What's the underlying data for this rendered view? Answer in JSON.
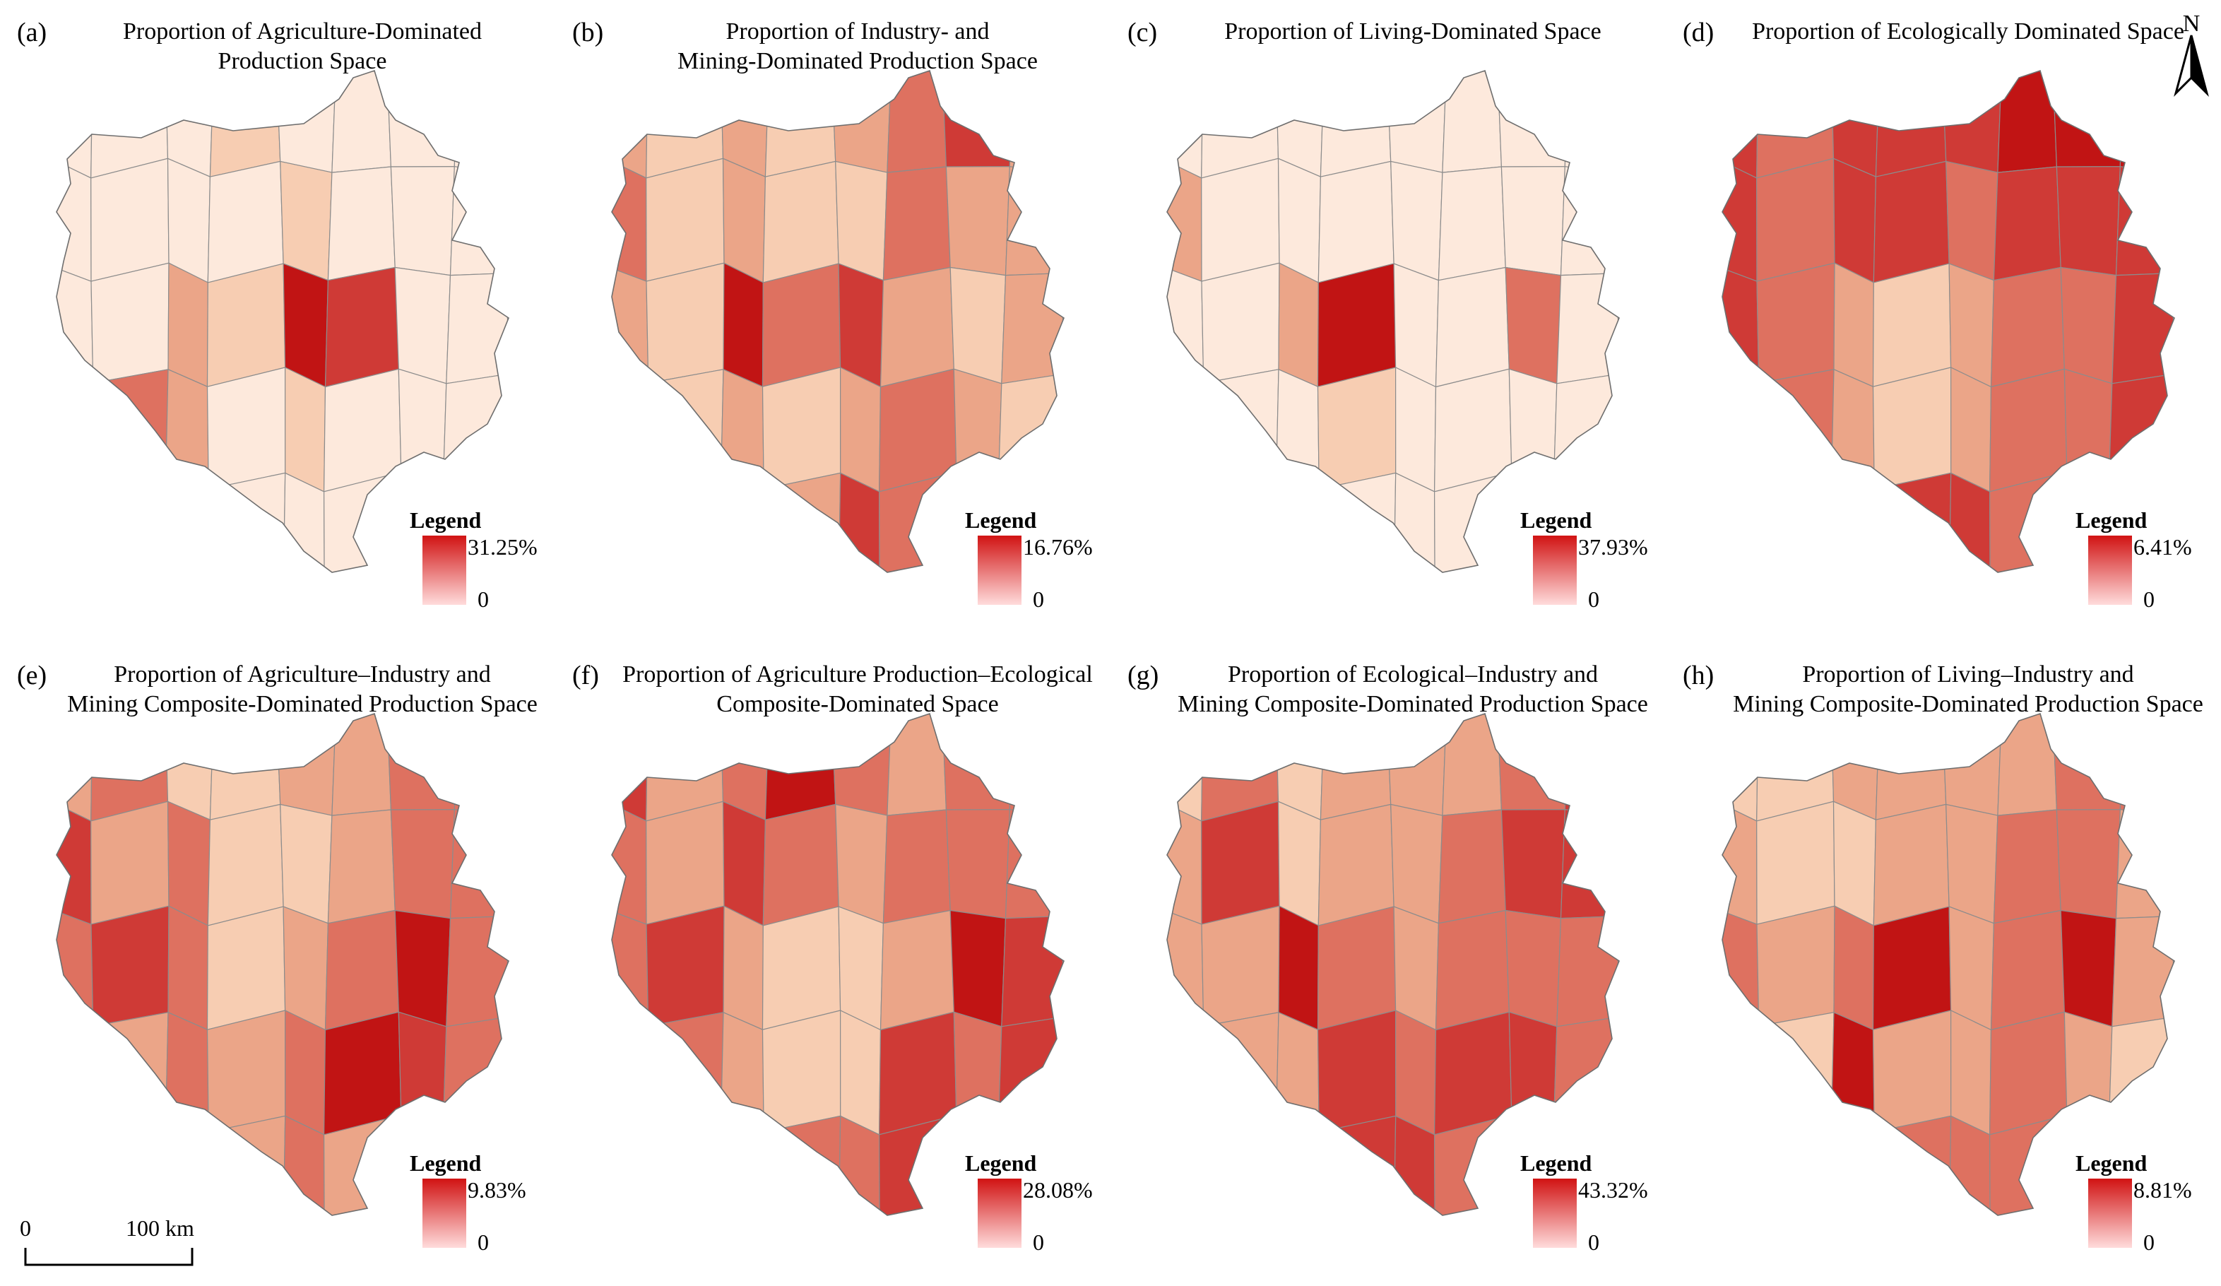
{
  "figure": {
    "north_label": "N",
    "scale_bar": {
      "start": "0",
      "end": "100 km"
    }
  },
  "colors": {
    "ramp_high": "#d11313",
    "ramp_low": "#ffdcdc",
    "boundary": "#8c8c8c",
    "outline": "#6e6e6e"
  },
  "classes": [
    "#fde9dc",
    "#f7cdb2",
    "#eba588",
    "#de7160",
    "#cf3a36",
    "#c11414"
  ],
  "panels": [
    {
      "letter": "(a)",
      "title_lines": [
        "Proportion of Agriculture-Dominated",
        "Production Space"
      ],
      "legend": {
        "title": "Legend",
        "max": "31.25%",
        "min": "0"
      }
    },
    {
      "letter": "(b)",
      "title_lines": [
        "Proportion of Industry- and",
        "Mining-Dominated Production Space"
      ],
      "legend": {
        "title": "Legend",
        "max": "16.76%",
        "min": "0"
      }
    },
    {
      "letter": "(c)",
      "title_lines": [
        "Proportion of Living-Dominated Space"
      ],
      "legend": {
        "title": "Legend",
        "max": "37.93%",
        "min": "0"
      }
    },
    {
      "letter": "(d)",
      "title_lines": [
        "Proportion of Ecologically Dominated Space"
      ],
      "legend": {
        "title": "Legend",
        "max": "6.41%",
        "min": "0"
      }
    },
    {
      "letter": "(e)",
      "title_lines": [
        "Proportion of Agriculture–Industry and",
        "Mining Composite-Dominated Production Space"
      ],
      "legend": {
        "title": "Legend",
        "max": "9.83%",
        "min": "0"
      }
    },
    {
      "letter": "(f)",
      "title_lines": [
        "Proportion of Agriculture Production–Ecological",
        "Composite-Dominated Space"
      ],
      "legend": {
        "title": "Legend",
        "max": "28.08%",
        "min": "0"
      }
    },
    {
      "letter": "(g)",
      "title_lines": [
        "Proportion of Ecological–Industry and",
        "Mining Composite-Dominated Production Space"
      ],
      "legend": {
        "title": "Legend",
        "max": "43.32%",
        "min": "0"
      }
    },
    {
      "letter": "(h)",
      "title_lines": [
        "Proportion of Living–Industry and",
        "Mining Composite-Dominated Production Space"
      ],
      "legend": {
        "title": "Legend",
        "max": "8.81%",
        "min": "0"
      }
    }
  ],
  "region_shading": [
    [
      0,
      0,
      0,
      1,
      0,
      0,
      0,
      0,
      0,
      0,
      0,
      0,
      1,
      0,
      0,
      0,
      0,
      0,
      2,
      1,
      5,
      4,
      0,
      0,
      0,
      3,
      2,
      0,
      1,
      0,
      0,
      0,
      0,
      0,
      0,
      0,
      0,
      0,
      0,
      1
    ],
    [
      2,
      1,
      2,
      1,
      2,
      3,
      4,
      2,
      3,
      1,
      2,
      1,
      1,
      3,
      2,
      2,
      2,
      1,
      5,
      3,
      4,
      2,
      1,
      2,
      2,
      1,
      2,
      1,
      2,
      3,
      2,
      1,
      2,
      1,
      3,
      2,
      4,
      3,
      2,
      2
    ],
    [
      0,
      0,
      0,
      0,
      0,
      0,
      0,
      0,
      2,
      0,
      0,
      0,
      0,
      0,
      0,
      0,
      0,
      0,
      2,
      5,
      0,
      0,
      3,
      0,
      0,
      0,
      0,
      1,
      0,
      0,
      0,
      0,
      0,
      0,
      0,
      0,
      0,
      0,
      1,
      0
    ],
    [
      4,
      3,
      4,
      4,
      4,
      5,
      5,
      5,
      4,
      3,
      4,
      4,
      3,
      4,
      4,
      4,
      4,
      3,
      2,
      1,
      2,
      3,
      3,
      4,
      4,
      3,
      2,
      1,
      2,
      3,
      3,
      4,
      4,
      4,
      4,
      4,
      4,
      3,
      4,
      3
    ],
    [
      2,
      3,
      1,
      1,
      2,
      2,
      3,
      3,
      4,
      2,
      3,
      1,
      1,
      2,
      3,
      3,
      3,
      4,
      3,
      1,
      2,
      3,
      5,
      3,
      2,
      2,
      3,
      2,
      3,
      5,
      4,
      3,
      2,
      2,
      2,
      2,
      3,
      2,
      2,
      2
    ],
    [
      4,
      2,
      3,
      5,
      3,
      2,
      3,
      3,
      3,
      2,
      4,
      3,
      2,
      3,
      3,
      3,
      3,
      4,
      2,
      1,
      1,
      2,
      5,
      4,
      3,
      3,
      2,
      1,
      1,
      4,
      3,
      4,
      3,
      4,
      4,
      3,
      3,
      4,
      3,
      3
    ],
    [
      1,
      3,
      1,
      2,
      2,
      2,
      3,
      4,
      2,
      4,
      1,
      2,
      2,
      3,
      4,
      4,
      2,
      2,
      5,
      3,
      2,
      3,
      3,
      3,
      2,
      2,
      2,
      4,
      3,
      4,
      4,
      3,
      1,
      2,
      2,
      4,
      4,
      3,
      3,
      4
    ],
    [
      1,
      1,
      2,
      2,
      2,
      2,
      3,
      3,
      2,
      1,
      1,
      2,
      2,
      3,
      3,
      2,
      3,
      2,
      3,
      5,
      2,
      3,
      5,
      2,
      2,
      1,
      5,
      2,
      2,
      3,
      2,
      1,
      1,
      2,
      2,
      3,
      3,
      3,
      4,
      3
    ]
  ]
}
